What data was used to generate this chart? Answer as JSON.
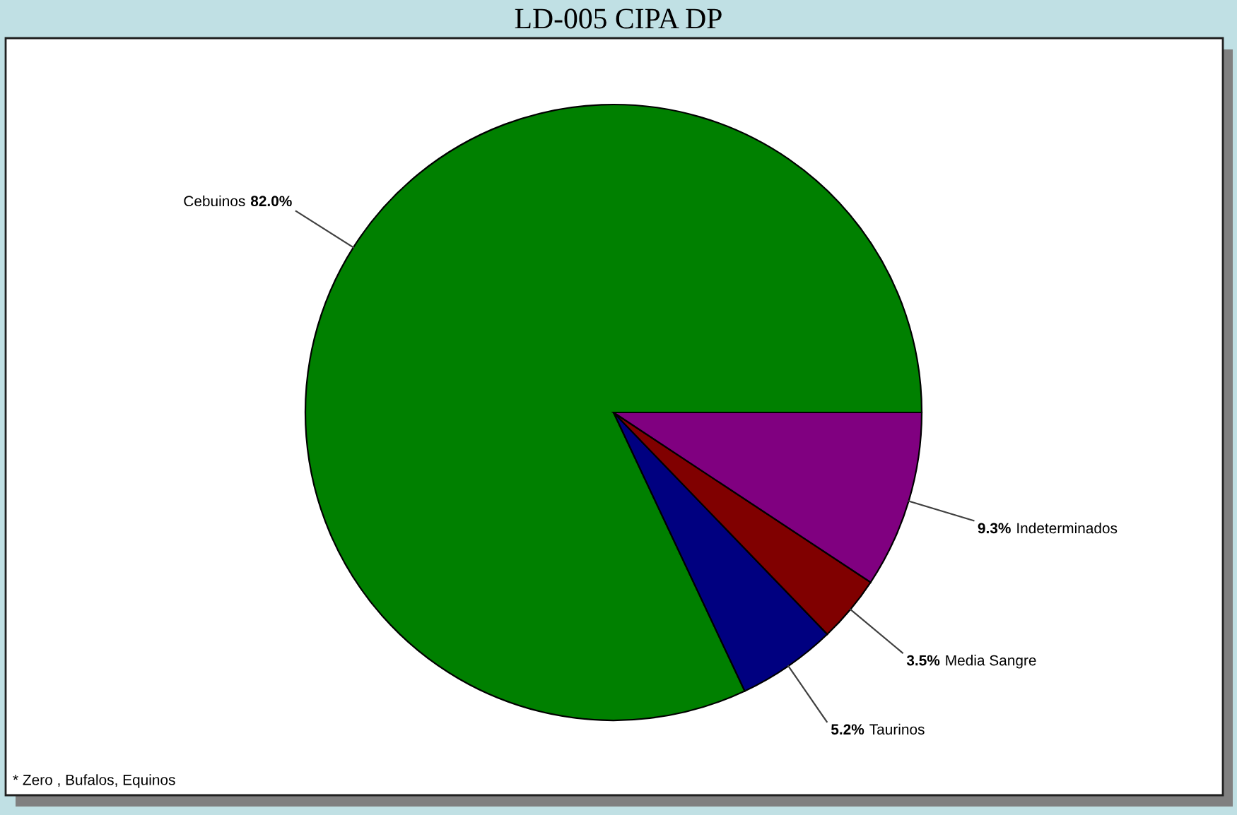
{
  "chart_data": {
    "type": "pie",
    "title": "LD-005 CIPA DP",
    "categories": [
      "Cebuinos",
      "Taurinos",
      "Media Sangre",
      "Indeterminados"
    ],
    "values": [
      82.0,
      5.2,
      3.5,
      9.3
    ],
    "colors": [
      "#008000",
      "#000080",
      "#800000",
      "#800080"
    ],
    "value_labels": [
      "82.0%",
      "5.2%",
      "3.5%",
      "9.3%"
    ],
    "annotations": [
      "* Zero , Bufalos, Equinos"
    ]
  }
}
